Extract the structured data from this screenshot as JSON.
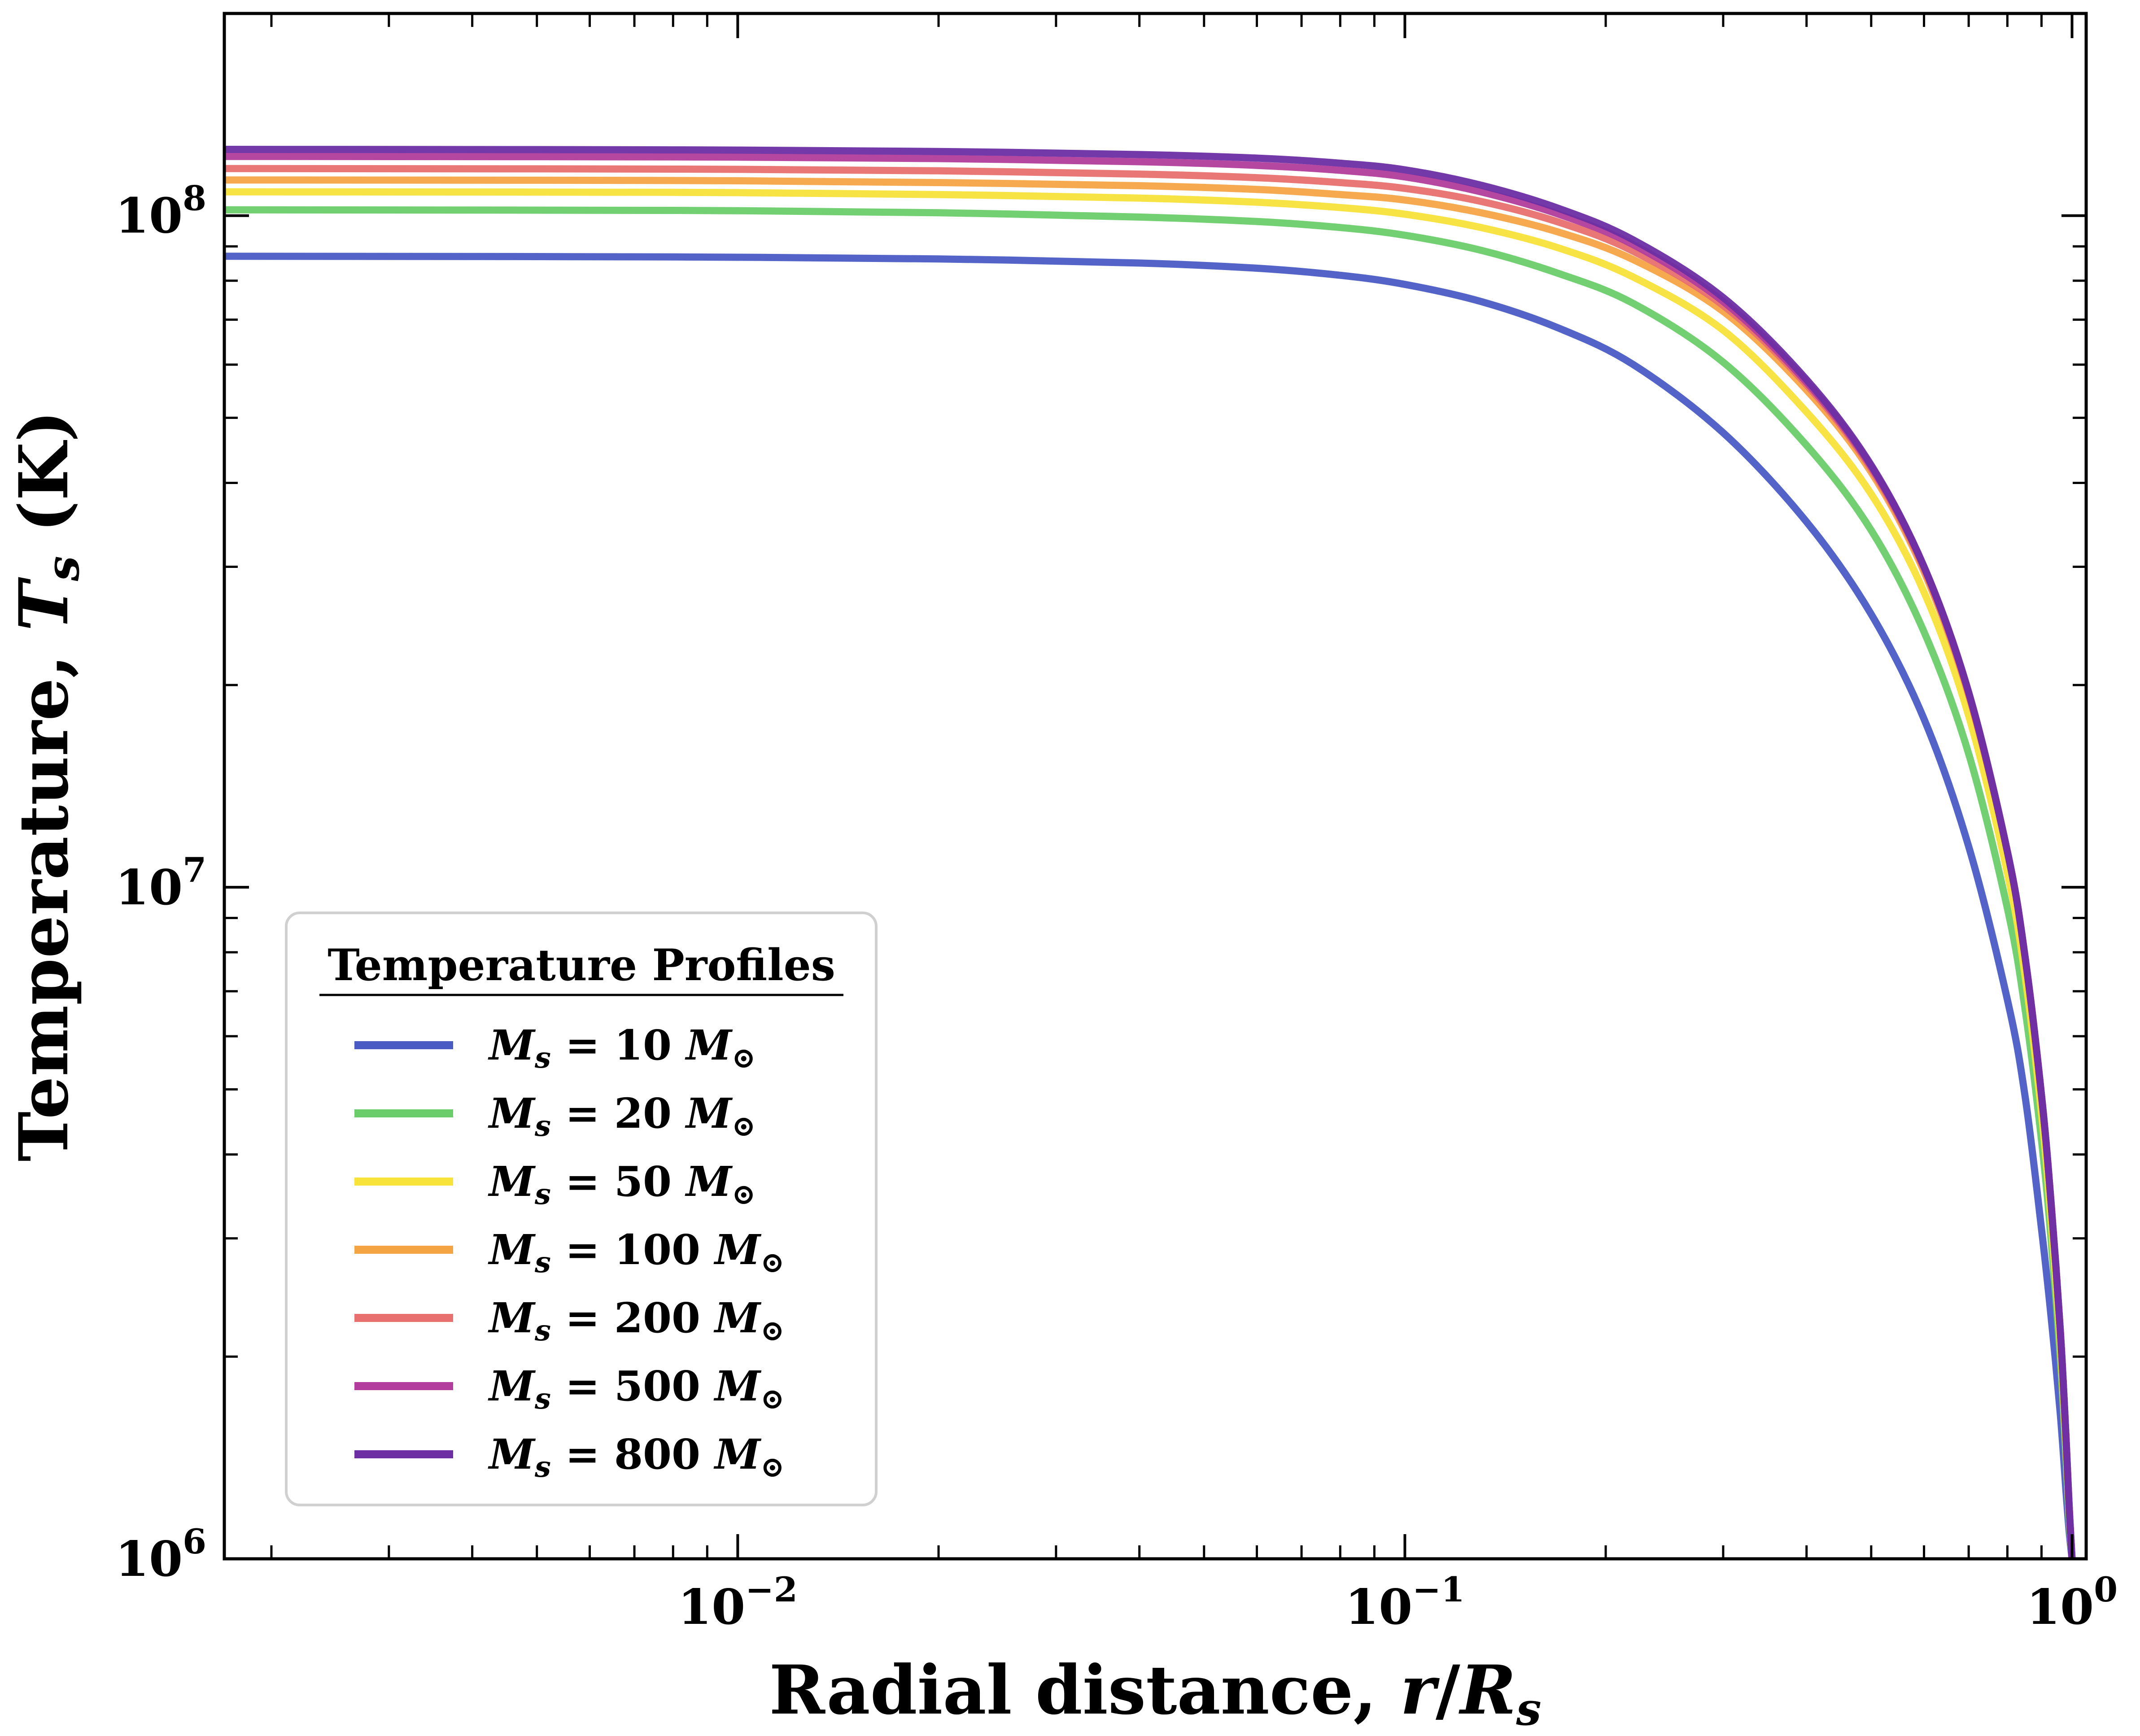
{
  "chart_data": {
    "type": "line",
    "xlabel": "Radial distance, r/R_s",
    "ylabel": "Temperature, T_s (K)",
    "xscale": "log",
    "yscale": "log",
    "xlim": [
      0.0017,
      1.05
    ],
    "ylim": [
      1000000,
      200000000
    ],
    "grid": false,
    "x_ticks": [
      {
        "value": 0.01,
        "base": "10",
        "exp": "−2"
      },
      {
        "value": 0.1,
        "base": "10",
        "exp": "−1"
      },
      {
        "value": 1,
        "base": "10",
        "exp": "0"
      }
    ],
    "y_ticks": [
      {
        "value": 1000000,
        "base": "10",
        "exp": "6"
      },
      {
        "value": 10000000,
        "base": "10",
        "exp": "7"
      },
      {
        "value": 100000000,
        "base": "10",
        "exp": "8"
      }
    ],
    "legend": {
      "title": "Temperature Profiles",
      "placement": "lower-left"
    },
    "x": [
      0.0017,
      0.005,
      0.01,
      0.02,
      0.04,
      0.06,
      0.08,
      0.1,
      0.13,
      0.17,
      0.22,
      0.3,
      0.4,
      0.5,
      0.6,
      0.7,
      0.8,
      0.85,
      0.9,
      0.93,
      0.96,
      0.98,
      0.99,
      1.0
    ],
    "series": [
      {
        "name": "M_s = 10 M_⊙",
        "mass": "10",
        "color": "#4a5bc4",
        "values": [
          87000000,
          86900000,
          86700000,
          86200000,
          85000000,
          83500000,
          81500000,
          79000000,
          74500000,
          68000000,
          60000000,
          47500000,
          35000000,
          25500000,
          17800000,
          11500000,
          6800000,
          4900000,
          3100000,
          2300000,
          1650000,
          1250000,
          1100000,
          1000000
        ]
      },
      {
        "name": "M_s = 20 M_⊙",
        "mass": "20",
        "color": "#6acd6a",
        "values": [
          102000000,
          101900000,
          101700000,
          101000000,
          99500000,
          98000000,
          96000000,
          93500000,
          88800000,
          82000000,
          74000000,
          60500000,
          45500000,
          34000000,
          24000000,
          15800000,
          9300000,
          6600000,
          4200000,
          3000000,
          2000000,
          1400000,
          1150000,
          1000000
        ]
      },
      {
        "name": "M_s = 50 M_⊙",
        "mass": "50",
        "color": "#f7e33a",
        "values": [
          108500000,
          108400000,
          108200000,
          107500000,
          106200000,
          104700000,
          102800000,
          100500000,
          96000000,
          89500000,
          81000000,
          67500000,
          51000000,
          38500000,
          27500000,
          18000000,
          10500000,
          7400000,
          4600000,
          3200000,
          2100000,
          1450000,
          1180000,
          1000000
        ]
      },
      {
        "name": "M_s = 100 M_⊙",
        "mass": "100",
        "color": "#f5a444",
        "values": [
          113000000,
          112900000,
          112700000,
          112000000,
          110800000,
          109400000,
          107500000,
          105500000,
          101000000,
          94500000,
          86000000,
          72000000,
          55000000,
          41500000,
          29500000,
          19300000,
          11300000,
          7900000,
          4900000,
          3400000,
          2200000,
          1500000,
          1200000,
          1000000
        ]
      },
      {
        "name": "M_s = 200 M_⊙",
        "mass": "200",
        "color": "#e8706e",
        "values": [
          117500000,
          117400000,
          117200000,
          116600000,
          115300000,
          113900000,
          112000000,
          109800000,
          105000000,
          97800000,
          88500000,
          73500000,
          56000000,
          42000000,
          29800000,
          19400000,
          11300000,
          7900000,
          4900000,
          3400000,
          2200000,
          1500000,
          1200000,
          1000000
        ]
      },
      {
        "name": "M_s = 500 M_⊙",
        "mass": "500",
        "color": "#b23d9c",
        "values": [
          122500000,
          122400000,
          122200000,
          121600000,
          120300000,
          118800000,
          116800000,
          114200000,
          108500000,
          100500000,
          90500000,
          74500000,
          56500000,
          42300000,
          30000000,
          19500000,
          11300000,
          7900000,
          4900000,
          3400000,
          2200000,
          1500000,
          1200000,
          1000000
        ]
      },
      {
        "name": "M_s = 800 M_⊙",
        "mass": "800",
        "color": "#6d2ea3",
        "values": [
          125500000,
          125400000,
          125200000,
          124600000,
          123300000,
          121800000,
          119700000,
          117000000,
          111000000,
          102500000,
          92000000,
          75500000,
          57000000,
          42500000,
          30000000,
          19500000,
          11300000,
          7900000,
          4900000,
          3400000,
          2200000,
          1500000,
          1200000,
          1000000
        ]
      }
    ]
  }
}
